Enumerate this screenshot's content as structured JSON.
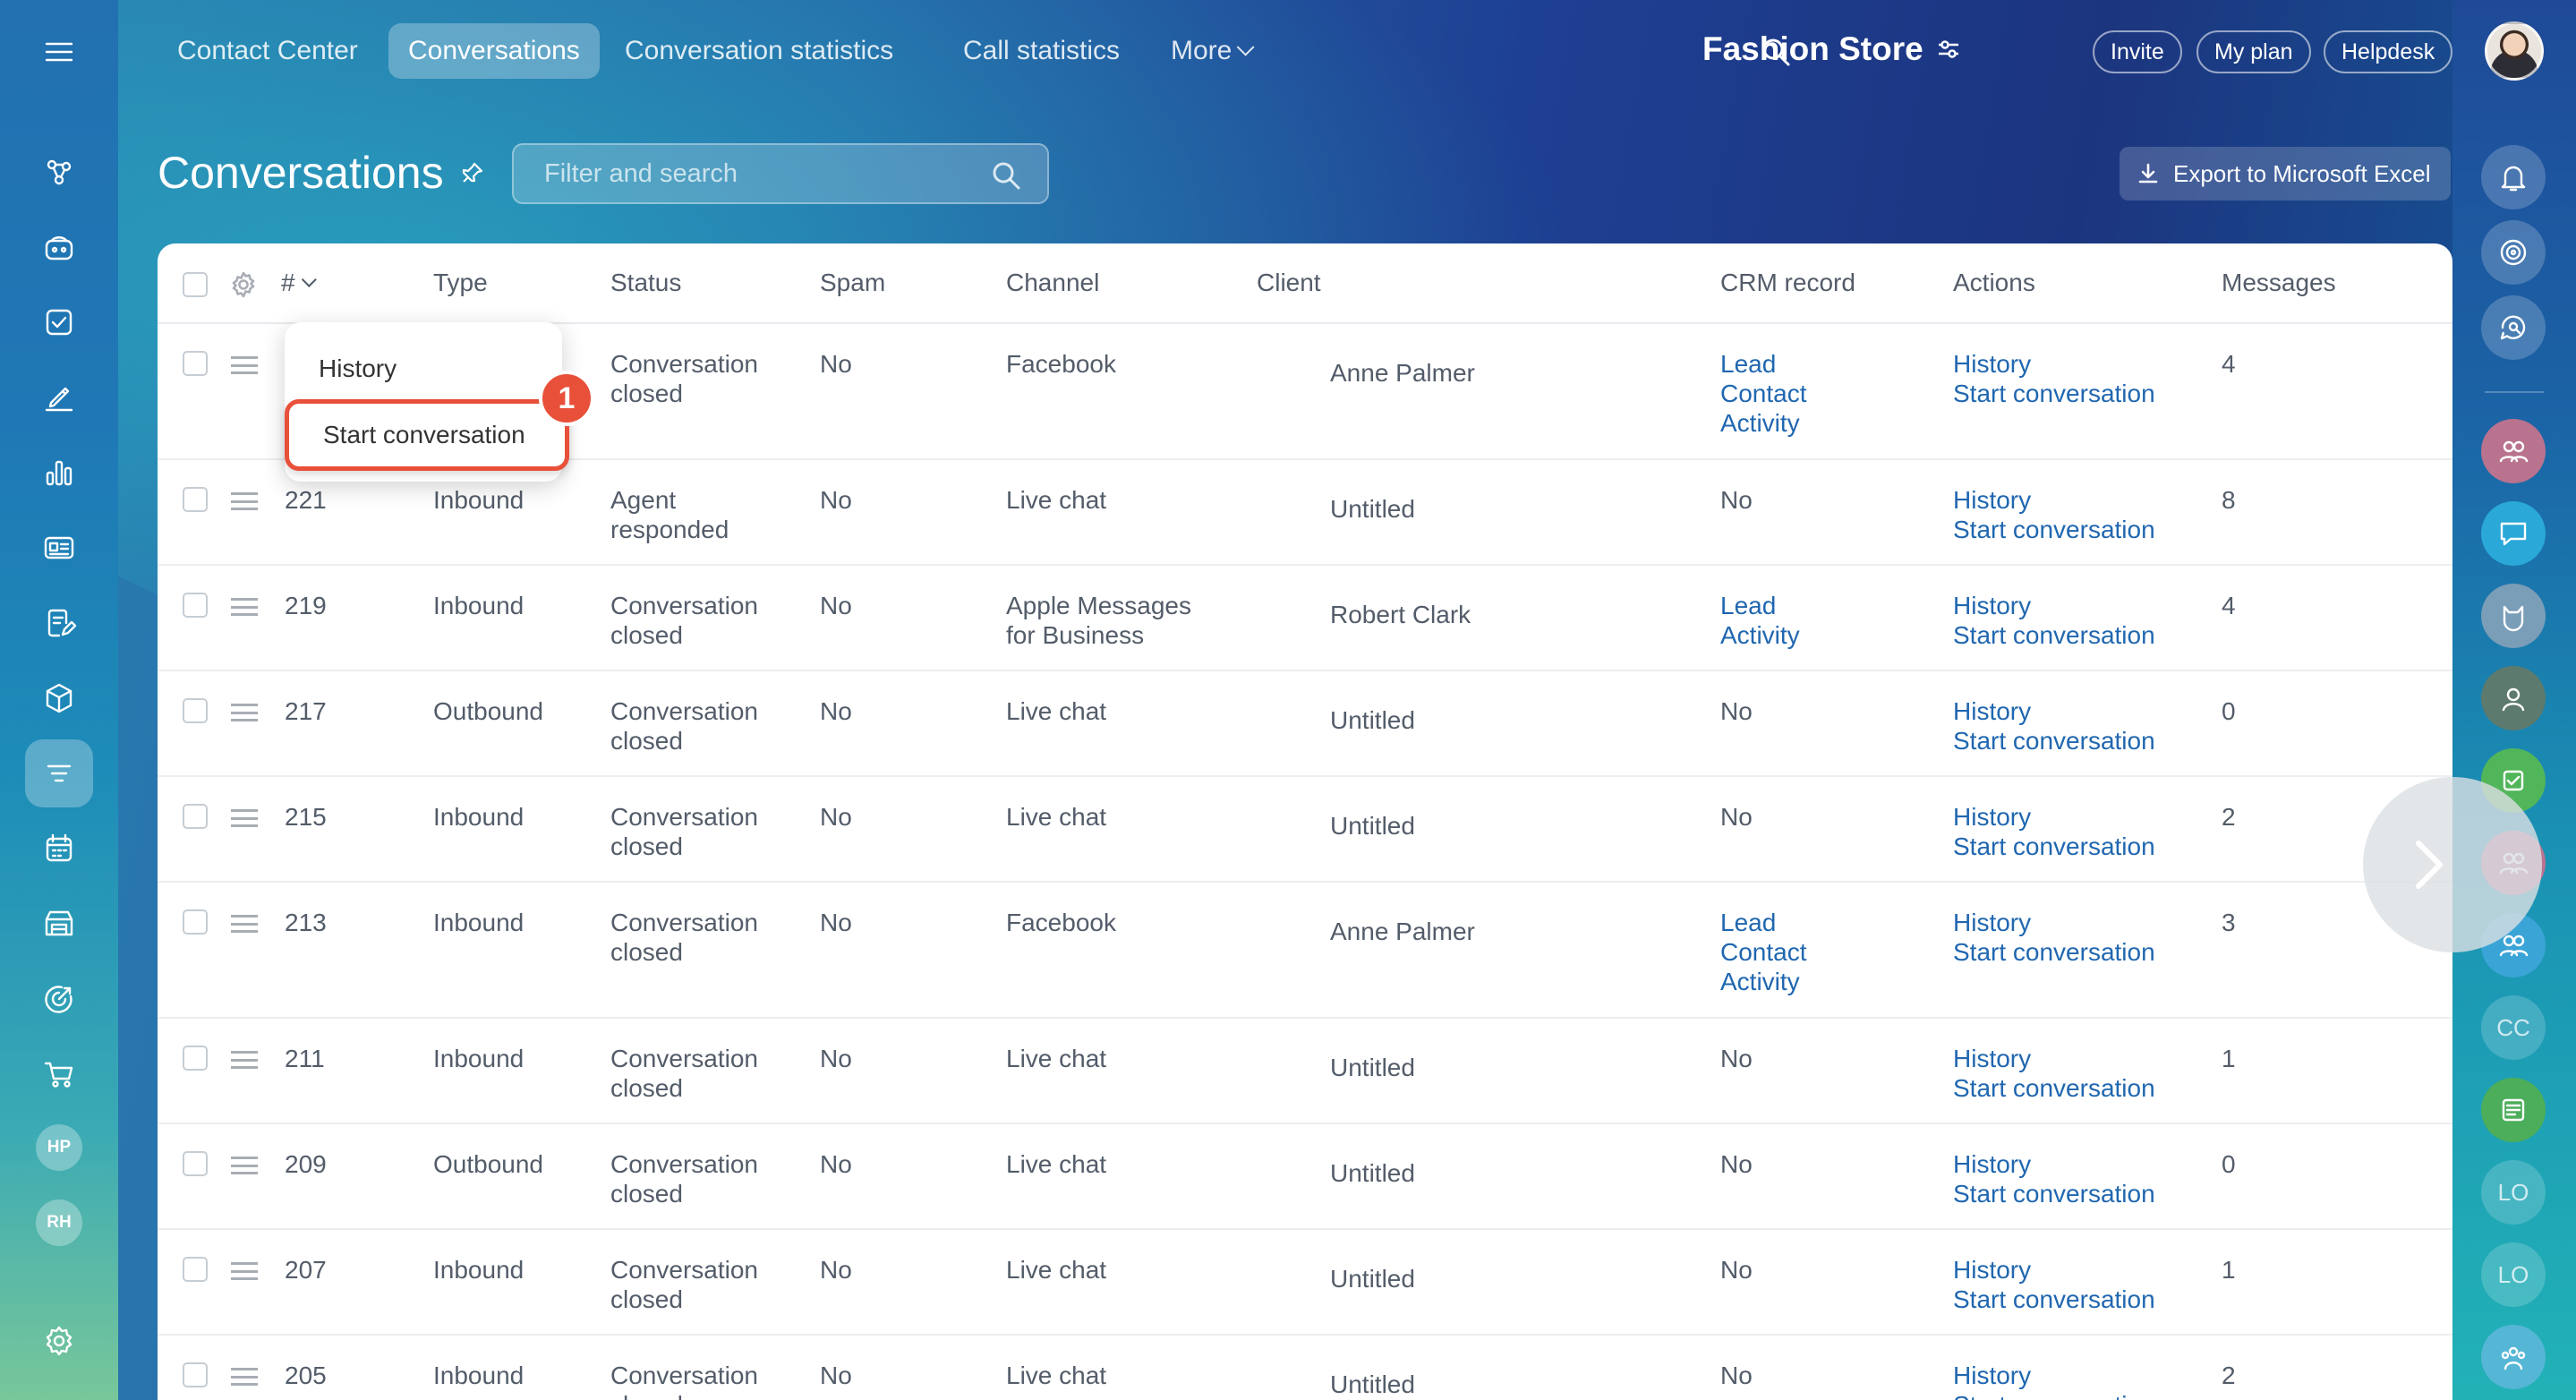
{
  "nav": {
    "tabs": [
      {
        "label": "Contact Center"
      },
      {
        "label": "Conversations",
        "active": true
      },
      {
        "label": "Conversation statistics"
      },
      {
        "label": "Call statistics"
      },
      {
        "label": "More"
      }
    ],
    "workspace": "Fashion Store",
    "invite_label": "Invite",
    "plan_label": "My plan",
    "helpdesk_label": "Helpdesk"
  },
  "page": {
    "title": "Conversations",
    "search_placeholder": "Filter and search",
    "export_label": "Export to Microsoft Excel"
  },
  "sidebar_avatars": [
    "HP",
    "RH"
  ],
  "right_rail_initials": [
    "CC",
    "LO",
    "LO"
  ],
  "table": {
    "columns": [
      "#",
      "Type",
      "Status",
      "Spam",
      "Channel",
      "Client",
      "CRM record",
      "Actions",
      "Messages"
    ],
    "rows": [
      {
        "id": "",
        "type": "",
        "status": [
          "Conversation",
          "closed"
        ],
        "spam": "No",
        "channel": [
          "Facebook"
        ],
        "client": "Anne Palmer",
        "crm": [
          "Lead",
          "Contact",
          "Activity"
        ],
        "crm_link": true,
        "actions": [
          "History",
          "Start conversation"
        ],
        "messages": "4"
      },
      {
        "id": "221",
        "type": "Inbound",
        "status": [
          "Agent",
          "responded"
        ],
        "spam": "No",
        "channel": [
          "Live chat"
        ],
        "client": "Untitled",
        "crm": [
          "No"
        ],
        "crm_link": false,
        "actions": [
          "History",
          "Start conversation"
        ],
        "messages": "8"
      },
      {
        "id": "219",
        "type": "Inbound",
        "status": [
          "Conversation",
          "closed"
        ],
        "spam": "No",
        "channel": [
          "Apple Messages",
          "for Business"
        ],
        "client": "Robert Clark",
        "crm": [
          "Lead",
          "Activity"
        ],
        "crm_link": true,
        "actions": [
          "History",
          "Start conversation"
        ],
        "messages": "4"
      },
      {
        "id": "217",
        "type": "Outbound",
        "status": [
          "Conversation",
          "closed"
        ],
        "spam": "No",
        "channel": [
          "Live chat"
        ],
        "client": "Untitled",
        "crm": [
          "No"
        ],
        "crm_link": false,
        "actions": [
          "History",
          "Start conversation"
        ],
        "messages": "0"
      },
      {
        "id": "215",
        "type": "Inbound",
        "status": [
          "Conversation",
          "closed"
        ],
        "spam": "No",
        "channel": [
          "Live chat"
        ],
        "client": "Untitled",
        "crm": [
          "No"
        ],
        "crm_link": false,
        "actions": [
          "History",
          "Start conversation"
        ],
        "messages": "2"
      },
      {
        "id": "213",
        "type": "Inbound",
        "status": [
          "Conversation",
          "closed"
        ],
        "spam": "No",
        "channel": [
          "Facebook"
        ],
        "client": "Anne Palmer",
        "crm": [
          "Lead",
          "Contact",
          "Activity"
        ],
        "crm_link": true,
        "actions": [
          "History",
          "Start conversation"
        ],
        "messages": "3"
      },
      {
        "id": "211",
        "type": "Inbound",
        "status": [
          "Conversation",
          "closed"
        ],
        "spam": "No",
        "channel": [
          "Live chat"
        ],
        "client": "Untitled",
        "crm": [
          "No"
        ],
        "crm_link": false,
        "actions": [
          "History",
          "Start conversation"
        ],
        "messages": "1"
      },
      {
        "id": "209",
        "type": "Outbound",
        "status": [
          "Conversation",
          "closed"
        ],
        "spam": "No",
        "channel": [
          "Live chat"
        ],
        "client": "Untitled",
        "crm": [
          "No"
        ],
        "crm_link": false,
        "actions": [
          "History",
          "Start conversation"
        ],
        "messages": "0"
      },
      {
        "id": "207",
        "type": "Inbound",
        "status": [
          "Conversation",
          "closed"
        ],
        "spam": "No",
        "channel": [
          "Live chat"
        ],
        "client": "Untitled",
        "crm": [
          "No"
        ],
        "crm_link": false,
        "actions": [
          "History",
          "Start conversation"
        ],
        "messages": "1"
      },
      {
        "id": "205",
        "type": "Inbound",
        "status": [
          "Conversation",
          "closed"
        ],
        "spam": "No",
        "channel": [
          "Live chat"
        ],
        "client": "Untitled",
        "crm": [
          "No"
        ],
        "crm_link": false,
        "actions": [
          "History",
          "Start conversation"
        ],
        "messages": "2"
      }
    ]
  },
  "context_menu": {
    "items": [
      "History",
      "Start conversation"
    ],
    "step_badge": "1"
  },
  "colors": {
    "link": "#2067b0",
    "highlight": "#e8503a",
    "text": "#535c69"
  }
}
